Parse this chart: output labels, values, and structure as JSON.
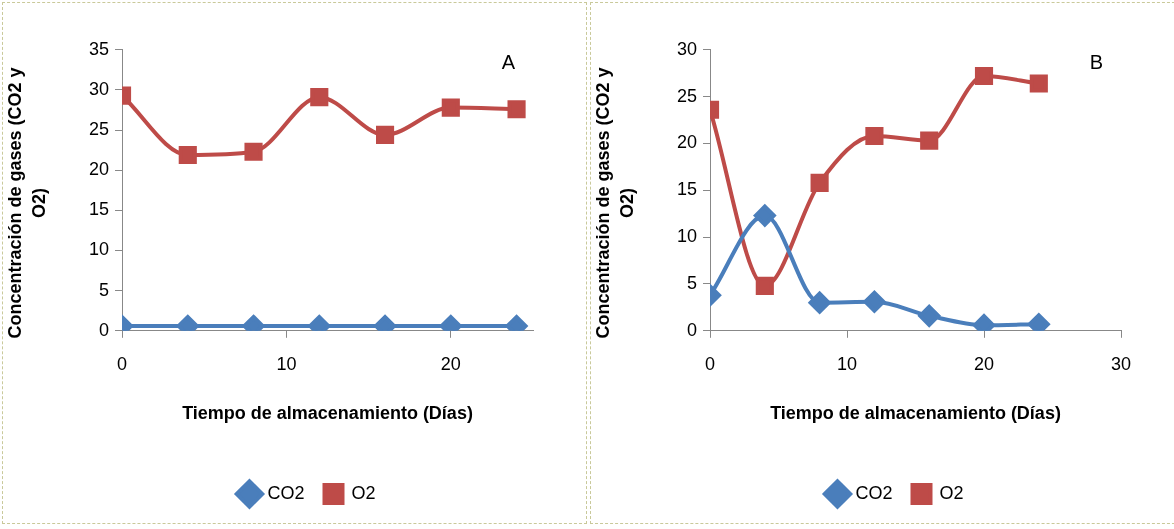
{
  "chart_data": [
    {
      "type": "line",
      "xlabel": "Tiempo de almacenamiento (Días)",
      "ylabel": "Concentración de gases (CO2 y O2)",
      "annotations": [
        "A"
      ],
      "xlim": [
        0,
        25
      ],
      "xticks": [
        0,
        10,
        20
      ],
      "ylim": [
        0,
        35
      ],
      "yticks": [
        0,
        5,
        10,
        15,
        20,
        25,
        30,
        35
      ],
      "grid": false,
      "legend": "bottom",
      "x": [
        0,
        4,
        8,
        12,
        16,
        20,
        24
      ],
      "series": [
        {
          "name": "CO2",
          "color": "#4a7ebb",
          "marker": "diamond",
          "values": [
            0.6,
            0.6,
            0.6,
            0.6,
            0.6,
            0.6,
            0.6
          ]
        },
        {
          "name": "O2",
          "color": "#be4b48",
          "marker": "square",
          "values": [
            29.3,
            21.9,
            22.3,
            29.1,
            24.4,
            27.8,
            27.6
          ]
        }
      ]
    },
    {
      "type": "line",
      "xlabel": "Tiempo de almacenamiento (Días)",
      "ylabel": "Concentración de gases (CO2 y O2)",
      "annotations": [
        "B"
      ],
      "xlim": [
        0,
        30
      ],
      "xticks": [
        0,
        10,
        20,
        30
      ],
      "ylim": [
        0,
        30
      ],
      "yticks": [
        0,
        5,
        10,
        15,
        20,
        25,
        30
      ],
      "grid": false,
      "legend": "bottom",
      "x": [
        0,
        4,
        8,
        12,
        16,
        20,
        24
      ],
      "series": [
        {
          "name": "CO2",
          "color": "#4a7ebb",
          "marker": "diamond",
          "values": [
            3.8,
            12.3,
            3.0,
            3.1,
            1.6,
            0.6,
            0.7
          ]
        },
        {
          "name": "O2",
          "color": "#be4b48",
          "marker": "square",
          "values": [
            23.6,
            4.8,
            15.8,
            20.8,
            20.3,
            27.2,
            26.4
          ]
        }
      ]
    }
  ]
}
